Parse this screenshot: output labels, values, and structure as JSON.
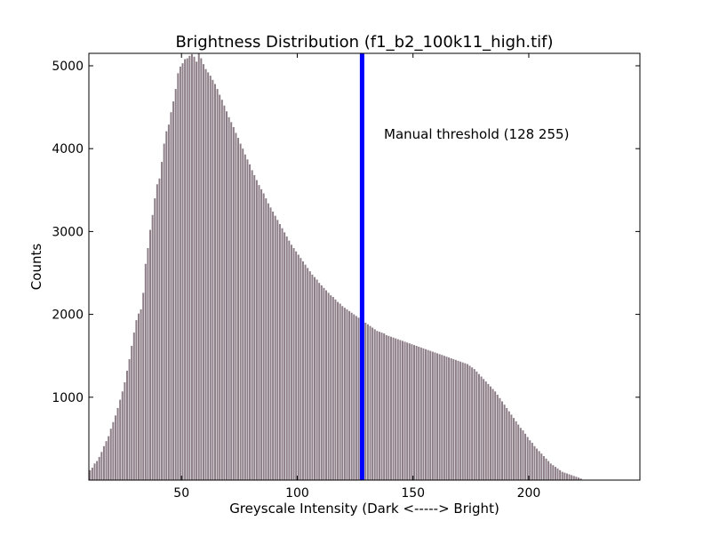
{
  "chart_data": {
    "type": "bar",
    "title": "Brightness Distribution (f1_b2_100k11_high.tif)",
    "xlabel": "Greyscale Intensity (Dark <-----> Bright)",
    "ylabel": "Counts",
    "xlim": [
      10,
      248
    ],
    "ylim": [
      0,
      5150
    ],
    "xticks": [
      50,
      100,
      150,
      200
    ],
    "yticks": [
      1000,
      2000,
      3000,
      4000,
      5000
    ],
    "grid": false,
    "bar_color": "#8c7d87",
    "bar_edge_color": "#ffffff",
    "threshold": {
      "x": 128,
      "color": "#0000ff",
      "label": "Manual threshold (128 255)"
    },
    "x_start": 10,
    "values": [
      120,
      150,
      200,
      230,
      280,
      340,
      410,
      470,
      530,
      620,
      700,
      780,
      870,
      970,
      1070,
      1180,
      1320,
      1460,
      1620,
      1780,
      1930,
      2010,
      2060,
      2260,
      2610,
      2800,
      3020,
      3200,
      3400,
      3570,
      3640,
      3840,
      4060,
      4210,
      4290,
      4440,
      4570,
      4720,
      4910,
      4990,
      5030,
      5080,
      5090,
      5120,
      5140,
      5110,
      5050,
      5150,
      5090,
      5020,
      4960,
      4920,
      4880,
      4830,
      4780,
      4720,
      4650,
      4590,
      4520,
      4450,
      4380,
      4320,
      4260,
      4190,
      4130,
      4060,
      4000,
      3930,
      3870,
      3810,
      3740,
      3680,
      3620,
      3560,
      3510,
      3460,
      3400,
      3340,
      3290,
      3240,
      3190,
      3140,
      3090,
      3040,
      2990,
      2940,
      2890,
      2840,
      2800,
      2760,
      2720,
      2680,
      2640,
      2600,
      2560,
      2520,
      2480,
      2450,
      2420,
      2380,
      2350,
      2320,
      2290,
      2260,
      2230,
      2210,
      2180,
      2150,
      2130,
      2100,
      2080,
      2060,
      2040,
      2020,
      2000,
      1980,
      1960,
      1940,
      1920,
      1900,
      1880,
      1860,
      1840,
      1820,
      1800,
      1790,
      1780,
      1770,
      1750,
      1740,
      1730,
      1720,
      1710,
      1700,
      1690,
      1680,
      1670,
      1660,
      1650,
      1640,
      1630,
      1620,
      1610,
      1600,
      1590,
      1580,
      1570,
      1560,
      1550,
      1540,
      1530,
      1520,
      1510,
      1500,
      1490,
      1480,
      1470,
      1460,
      1450,
      1440,
      1430,
      1420,
      1410,
      1400,
      1380,
      1360,
      1340,
      1310,
      1280,
      1250,
      1220,
      1190,
      1160,
      1130,
      1100,
      1070,
      1030,
      990,
      950,
      910,
      870,
      830,
      790,
      750,
      710,
      670,
      630,
      600,
      560,
      520,
      480,
      450,
      410,
      380,
      350,
      320,
      290,
      260,
      230,
      200,
      180,
      160,
      140,
      120,
      100,
      90,
      80,
      70,
      60,
      50,
      40,
      30,
      20
    ],
    "text": {
      "tick_labels_x": [
        "50",
        "100",
        "150",
        "200"
      ],
      "tick_labels_y": [
        "1000",
        "2000",
        "3000",
        "4000",
        "5000"
      ]
    }
  }
}
